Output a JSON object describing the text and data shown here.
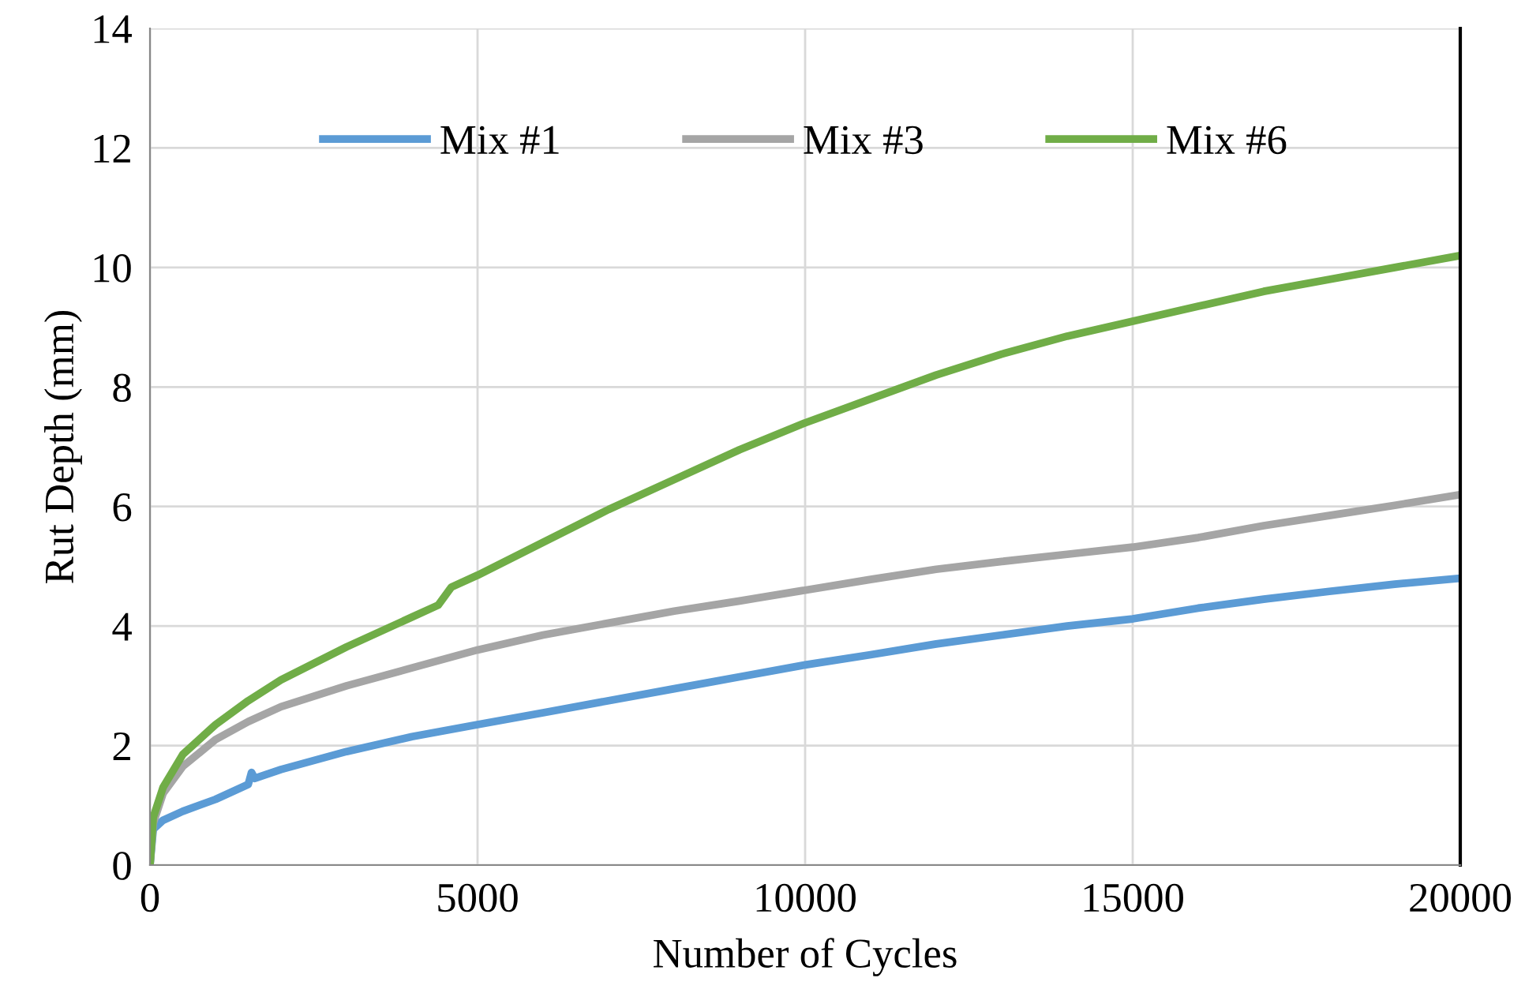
{
  "chart_data": {
    "type": "line",
    "xlabel": "Number of Cycles",
    "ylabel": "Rut Depth (mm)",
    "xlim": [
      0,
      20000
    ],
    "xticks": [
      0,
      5000,
      10000,
      15000,
      20000
    ],
    "ylim": [
      0,
      14
    ],
    "yticks": [
      0,
      2,
      4,
      6,
      8,
      10,
      12,
      14
    ],
    "grid": true,
    "legend": "top",
    "marker": "none",
    "line_style": "solid",
    "series": [
      {
        "name": "Mix #1",
        "color": "#5b9bd5",
        "x": [
          0,
          50,
          200,
          500,
          1000,
          1500,
          1550,
          1600,
          2000,
          3000,
          4000,
          5000,
          6000,
          7000,
          8000,
          9000,
          10000,
          11000,
          12000,
          13000,
          14000,
          15000,
          16000,
          17000,
          18000,
          19000,
          20000
        ],
        "values": [
          0,
          0.6,
          0.75,
          0.9,
          1.1,
          1.35,
          1.55,
          1.45,
          1.6,
          1.9,
          2.15,
          2.35,
          2.55,
          2.75,
          2.95,
          3.15,
          3.35,
          3.52,
          3.7,
          3.85,
          4.0,
          4.12,
          4.3,
          4.45,
          4.58,
          4.7,
          4.8
        ]
      },
      {
        "name": "Mix #3",
        "color": "#a5a5a5",
        "x": [
          0,
          50,
          200,
          500,
          1000,
          1500,
          2000,
          3000,
          4000,
          5000,
          6000,
          7000,
          8000,
          9000,
          10000,
          11000,
          12000,
          13000,
          14000,
          15000,
          16000,
          17000,
          18000,
          19000,
          20000
        ],
        "values": [
          0,
          0.7,
          1.2,
          1.65,
          2.1,
          2.4,
          2.65,
          3.0,
          3.3,
          3.6,
          3.85,
          4.05,
          4.25,
          4.42,
          4.6,
          4.78,
          4.95,
          5.08,
          5.2,
          5.32,
          5.48,
          5.68,
          5.85,
          6.02,
          6.2
        ]
      },
      {
        "name": "Mix #6",
        "color": "#70ad47",
        "x": [
          0,
          50,
          200,
          500,
          1000,
          1500,
          2000,
          3000,
          4000,
          4400,
          4600,
          5000,
          6000,
          7000,
          8000,
          9000,
          10000,
          11000,
          12000,
          13000,
          14000,
          15000,
          16000,
          17000,
          18000,
          19000,
          20000
        ],
        "values": [
          0,
          0.8,
          1.3,
          1.85,
          2.35,
          2.75,
          3.1,
          3.65,
          4.15,
          4.35,
          4.65,
          4.85,
          5.4,
          5.95,
          6.45,
          6.95,
          7.4,
          7.8,
          8.2,
          8.55,
          8.85,
          9.1,
          9.35,
          9.6,
          9.8,
          10.0,
          10.2
        ]
      }
    ]
  }
}
